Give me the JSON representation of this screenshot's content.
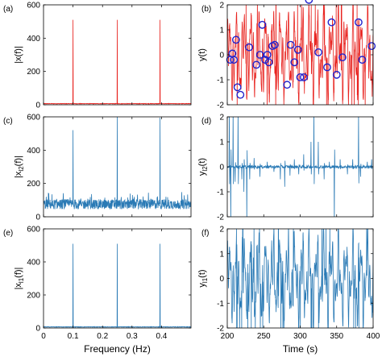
{
  "chart_data": [
    {
      "type": "line",
      "panel_label": "(a)",
      "ylabel": "|x(f)|",
      "xlim": [
        0,
        0.5
      ],
      "ylim": [
        0,
        600
      ],
      "xticks": [
        0,
        0.1,
        0.2,
        0.3,
        0.4
      ],
      "yticks": [
        0,
        200,
        400,
        600
      ],
      "xtick_labels": [
        "",
        "",
        "",
        "",
        ""
      ],
      "ytick_labels": [
        "0",
        "200",
        "400",
        "600"
      ],
      "color": "#e8231f",
      "baseline": 5,
      "peaks": [
        {
          "x": 0.1,
          "y": 510
        },
        {
          "x": 0.25,
          "y": 510
        },
        {
          "x": 0.395,
          "y": 510
        }
      ]
    },
    {
      "type": "line",
      "panel_label": "(b)",
      "ylabel": "y(t)",
      "xlim": [
        200,
        400
      ],
      "ylim": [
        -2,
        2
      ],
      "xticks": [
        200,
        250,
        300,
        350,
        400
      ],
      "yticks": [
        -2,
        -1,
        0,
        1,
        2
      ],
      "xtick_labels": [
        "",
        "",
        "",
        "",
        ""
      ],
      "ytick_labels": [
        "-2",
        "-1",
        "0",
        "1",
        "2"
      ],
      "color": "#e8231f",
      "marker_color": "#2222cc",
      "samples": [
        {
          "x": 204,
          "y": -0.2
        },
        {
          "x": 207,
          "y": 0.05
        },
        {
          "x": 209,
          "y": -0.2
        },
        {
          "x": 212,
          "y": 0.6
        },
        {
          "x": 214,
          "y": -1.3
        },
        {
          "x": 218,
          "y": -1.6
        },
        {
          "x": 230,
          "y": 0.3
        },
        {
          "x": 240,
          "y": -0.4
        },
        {
          "x": 245,
          "y": 0.0
        },
        {
          "x": 248,
          "y": 1.2
        },
        {
          "x": 252,
          "y": -0.2
        },
        {
          "x": 255,
          "y": 0.0
        },
        {
          "x": 257,
          "y": -0.3
        },
        {
          "x": 262,
          "y": 0.35
        },
        {
          "x": 265,
          "y": 0.4
        },
        {
          "x": 282,
          "y": -1.2
        },
        {
          "x": 287,
          "y": 0.4
        },
        {
          "x": 292,
          "y": -0.3
        },
        {
          "x": 297,
          "y": 0.2
        },
        {
          "x": 300,
          "y": -0.9
        },
        {
          "x": 305,
          "y": -0.9
        },
        {
          "x": 312,
          "y": 2.2
        },
        {
          "x": 325,
          "y": 0.1
        },
        {
          "x": 337,
          "y": -0.5
        },
        {
          "x": 343,
          "y": 1.3
        },
        {
          "x": 350,
          "y": -0.8
        },
        {
          "x": 358,
          "y": -0.1
        },
        {
          "x": 380,
          "y": 1.3
        },
        {
          "x": 385,
          "y": -0.2
        },
        {
          "x": 398,
          "y": 0.35
        }
      ]
    },
    {
      "type": "line",
      "panel_label": "(c)",
      "ylabel": "|x_l2(f)|",
      "xlim": [
        0,
        0.5
      ],
      "ylim": [
        0,
        600
      ],
      "xticks": [
        0,
        0.1,
        0.2,
        0.3,
        0.4
      ],
      "yticks": [
        0,
        200,
        400,
        600
      ],
      "xtick_labels": [
        "",
        "",
        "",
        "",
        ""
      ],
      "ytick_labels": [
        "0",
        "200",
        "400",
        "600"
      ],
      "color": "#2a7ab5",
      "noise_mean": 75,
      "noise_range": [
        30,
        140
      ],
      "peaks": [
        {
          "x": 0.1,
          "y": 520
        },
        {
          "x": 0.25,
          "y": 600
        },
        {
          "x": 0.395,
          "y": 595
        }
      ]
    },
    {
      "type": "line",
      "panel_label": "(d)",
      "ylabel": "y_l2(t)",
      "xlim": [
        200,
        400
      ],
      "ylim": [
        -2,
        2
      ],
      "xticks": [
        200,
        250,
        300,
        350,
        400
      ],
      "yticks": [
        -2,
        -1,
        0,
        1,
        2
      ],
      "xtick_labels": [
        "",
        "",
        "",
        "",
        ""
      ],
      "ytick_labels": [
        "-2",
        "-1",
        "0",
        "1",
        "2"
      ],
      "color": "#2a7ab5",
      "spikes": [
        {
          "x": 203,
          "y": 2.3
        },
        {
          "x": 205,
          "y": -2.3
        },
        {
          "x": 208,
          "y": 2.3
        },
        {
          "x": 211,
          "y": -0.6
        },
        {
          "x": 215,
          "y": 2.3
        },
        {
          "x": 220,
          "y": -0.5
        },
        {
          "x": 223,
          "y": -1.0
        },
        {
          "x": 227,
          "y": -2.2
        },
        {
          "x": 231,
          "y": -0.5
        },
        {
          "x": 237,
          "y": 0.35
        },
        {
          "x": 245,
          "y": -0.4
        },
        {
          "x": 255,
          "y": 0.2
        },
        {
          "x": 264,
          "y": -0.2
        },
        {
          "x": 273,
          "y": -0.5
        },
        {
          "x": 279,
          "y": -0.8
        },
        {
          "x": 286,
          "y": -0.35
        },
        {
          "x": 292,
          "y": 0.3
        },
        {
          "x": 298,
          "y": -0.3
        },
        {
          "x": 305,
          "y": 0.5
        },
        {
          "x": 315,
          "y": 1.0
        },
        {
          "x": 319,
          "y": 2.3
        },
        {
          "x": 325,
          "y": 1.0
        },
        {
          "x": 333,
          "y": -0.5
        },
        {
          "x": 340,
          "y": 0.2
        },
        {
          "x": 347,
          "y": -2.3
        },
        {
          "x": 355,
          "y": 0.3
        },
        {
          "x": 365,
          "y": -0.3
        },
        {
          "x": 372,
          "y": 0.3
        },
        {
          "x": 380,
          "y": 2.2
        },
        {
          "x": 383,
          "y": -0.4
        },
        {
          "x": 392,
          "y": 0.2
        },
        {
          "x": 398,
          "y": 0.3
        }
      ]
    },
    {
      "type": "line",
      "panel_label": "(e)",
      "ylabel": "|x_l1(f)|",
      "xlabel": "Frequency (Hz)",
      "xlim": [
        0,
        0.5
      ],
      "ylim": [
        0,
        600
      ],
      "xticks": [
        0,
        0.1,
        0.2,
        0.3,
        0.4
      ],
      "yticks": [
        0,
        200,
        400,
        600
      ],
      "xtick_labels": [
        "0",
        "0.1",
        "0.2",
        "0.3",
        "0.4"
      ],
      "ytick_labels": [
        "0",
        "200",
        "400",
        "600"
      ],
      "color": "#2a7ab5",
      "baseline": 5,
      "peaks": [
        {
          "x": 0.1,
          "y": 510
        },
        {
          "x": 0.25,
          "y": 510
        },
        {
          "x": 0.395,
          "y": 510
        }
      ]
    },
    {
      "type": "line",
      "panel_label": "(f)",
      "ylabel": "y_l1(t)",
      "xlabel": "Time (s)",
      "xlim": [
        200,
        400
      ],
      "ylim": [
        -2,
        2
      ],
      "xticks": [
        200,
        250,
        300,
        350,
        400
      ],
      "yticks": [
        -2,
        -1,
        0,
        1,
        2
      ],
      "xtick_labels": [
        "200",
        "250",
        "300",
        "350",
        "400"
      ],
      "ytick_labels": [
        "-2",
        "-1",
        "0",
        "1",
        "2"
      ],
      "color": "#2a7ab5"
    }
  ]
}
